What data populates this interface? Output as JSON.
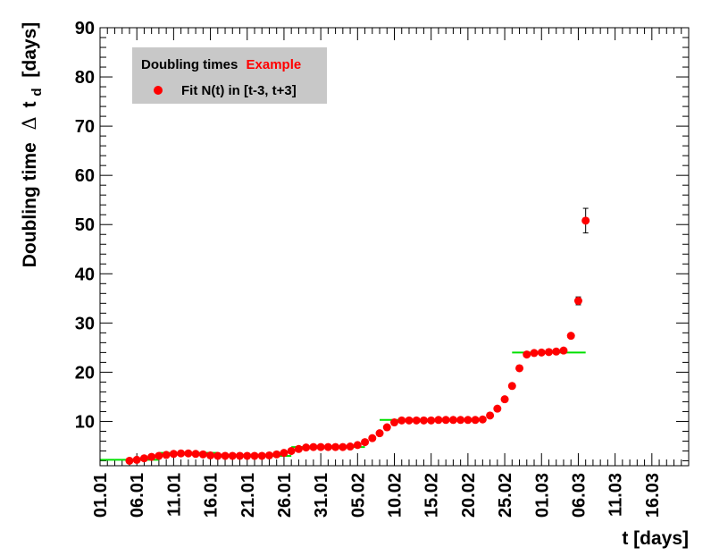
{
  "chart_data": {
    "type": "scatter",
    "title": "",
    "xlabel": "t [days]",
    "ylabel": "Doubling time",
    "ylabel_symbol": "Δ",
    "ylabel_var": "t",
    "ylabel_sub": "d",
    "ylabel_unit": "[days]",
    "xlim": [
      0,
      80
    ],
    "ylim": [
      1,
      90
    ],
    "x_ticks": [
      {
        "x": 0,
        "label": "01.01"
      },
      {
        "x": 5,
        "label": "06.01"
      },
      {
        "x": 10,
        "label": "11.01"
      },
      {
        "x": 15,
        "label": "16.01"
      },
      {
        "x": 20,
        "label": "21.01"
      },
      {
        "x": 25,
        "label": "26.01"
      },
      {
        "x": 30,
        "label": "31.01"
      },
      {
        "x": 35,
        "label": "05.02"
      },
      {
        "x": 40,
        "label": "10.02"
      },
      {
        "x": 45,
        "label": "15.02"
      },
      {
        "x": 50,
        "label": "20.02"
      },
      {
        "x": 55,
        "label": "25.02"
      },
      {
        "x": 60,
        "label": "01.03"
      },
      {
        "x": 65,
        "label": "06.03"
      },
      {
        "x": 70,
        "label": "11.03"
      },
      {
        "x": 75,
        "label": "16.03"
      }
    ],
    "y_ticks": [
      10,
      20,
      30,
      40,
      50,
      60,
      70,
      80,
      90
    ],
    "legend": {
      "placement": "top-left",
      "header_text": "Doubling times",
      "header_highlight": "Example",
      "header_highlight_color": "#ff0000",
      "entry_label": "Fit N(t) in [t-3, t+3]",
      "background_color": "#c8c8c8"
    },
    "series": [
      {
        "name": "Fit N(t) in [t-3, t+3]",
        "color": "#ff0000",
        "points": [
          {
            "x": 4,
            "y": 2.0
          },
          {
            "x": 5,
            "y": 2.2
          },
          {
            "x": 6,
            "y": 2.5
          },
          {
            "x": 7,
            "y": 2.8
          },
          {
            "x": 8,
            "y": 3.0
          },
          {
            "x": 9,
            "y": 3.2
          },
          {
            "x": 10,
            "y": 3.4
          },
          {
            "x": 11,
            "y": 3.5
          },
          {
            "x": 12,
            "y": 3.5
          },
          {
            "x": 13,
            "y": 3.4
          },
          {
            "x": 14,
            "y": 3.3
          },
          {
            "x": 15,
            "y": 3.1
          },
          {
            "x": 16,
            "y": 3.0
          },
          {
            "x": 17,
            "y": 3.0
          },
          {
            "x": 18,
            "y": 3.0
          },
          {
            "x": 19,
            "y": 3.0
          },
          {
            "x": 20,
            "y": 3.0
          },
          {
            "x": 21,
            "y": 3.0
          },
          {
            "x": 22,
            "y": 3.0
          },
          {
            "x": 23,
            "y": 3.1
          },
          {
            "x": 24,
            "y": 3.3
          },
          {
            "x": 25,
            "y": 3.6
          },
          {
            "x": 26,
            "y": 4.0
          },
          {
            "x": 27,
            "y": 4.4
          },
          {
            "x": 28,
            "y": 4.7
          },
          {
            "x": 29,
            "y": 4.8
          },
          {
            "x": 30,
            "y": 4.8
          },
          {
            "x": 31,
            "y": 4.8
          },
          {
            "x": 32,
            "y": 4.8
          },
          {
            "x": 33,
            "y": 4.8
          },
          {
            "x": 34,
            "y": 4.9
          },
          {
            "x": 35,
            "y": 5.2
          },
          {
            "x": 36,
            "y": 5.8
          },
          {
            "x": 37,
            "y": 6.6
          },
          {
            "x": 38,
            "y": 7.6
          },
          {
            "x": 39,
            "y": 8.8
          },
          {
            "x": 40,
            "y": 9.8
          },
          {
            "x": 41,
            "y": 10.2
          },
          {
            "x": 42,
            "y": 10.2
          },
          {
            "x": 43,
            "y": 10.2
          },
          {
            "x": 44,
            "y": 10.2
          },
          {
            "x": 45,
            "y": 10.2
          },
          {
            "x": 46,
            "y": 10.3
          },
          {
            "x": 47,
            "y": 10.3
          },
          {
            "x": 48,
            "y": 10.3
          },
          {
            "x": 49,
            "y": 10.3
          },
          {
            "x": 50,
            "y": 10.3
          },
          {
            "x": 51,
            "y": 10.3
          },
          {
            "x": 52,
            "y": 10.4
          },
          {
            "x": 53,
            "y": 11.2
          },
          {
            "x": 54,
            "y": 12.6
          },
          {
            "x": 55,
            "y": 14.5
          },
          {
            "x": 56,
            "y": 17.2
          },
          {
            "x": 57,
            "y": 20.8
          },
          {
            "x": 58,
            "y": 23.6
          },
          {
            "x": 59,
            "y": 23.9
          },
          {
            "x": 60,
            "y": 24.0
          },
          {
            "x": 61,
            "y": 24.1
          },
          {
            "x": 62,
            "y": 24.2
          },
          {
            "x": 63,
            "y": 24.4
          },
          {
            "x": 64,
            "y": 27.4
          },
          {
            "x": 65,
            "y": 34.5,
            "err": 0.8
          },
          {
            "x": 66,
            "y": 50.8,
            "err": 2.5
          }
        ]
      }
    ],
    "plateau_lines": {
      "color": "#00e000",
      "segments": [
        {
          "x0": 0,
          "x1": 8,
          "y": 2.2
        },
        {
          "x0": 8,
          "x1": 16,
          "y": 3.6
        },
        {
          "x0": 16,
          "x1": 26,
          "y": 3.0
        },
        {
          "x0": 26,
          "x1": 36,
          "y": 4.8
        },
        {
          "x0": 38,
          "x1": 52,
          "y": 10.3
        },
        {
          "x0": 56,
          "x1": 66,
          "y": 24.0
        }
      ]
    }
  }
}
